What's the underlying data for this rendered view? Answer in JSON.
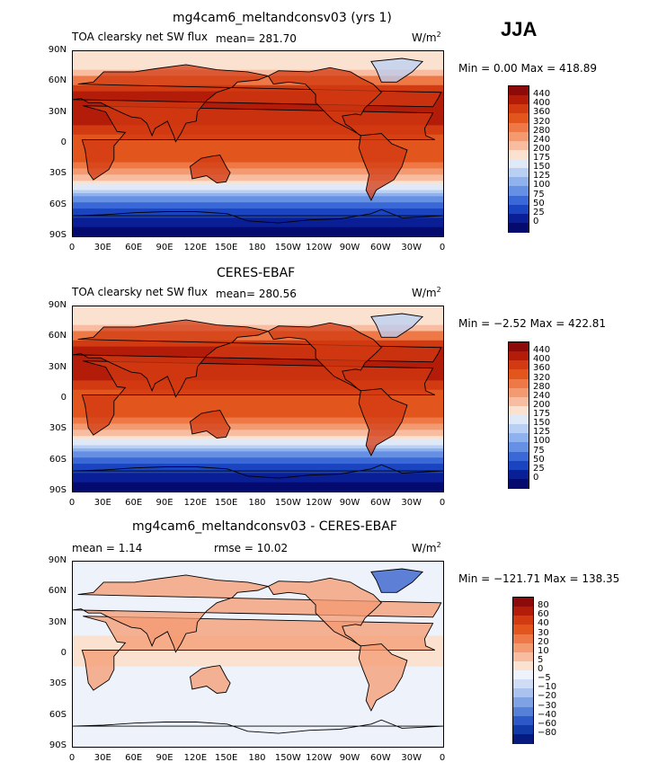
{
  "season": "JJA",
  "units": "W/m",
  "units_sup": "2",
  "panels": [
    {
      "title": "mg4cam6_meltandconsv03 (yrs 1)",
      "variable": "TOA clearsky net SW flux",
      "stat_text": "mean= 281.70",
      "minmax": "Min =    0.00 Max = 418.89",
      "colorbar": [
        "440",
        "400",
        "360",
        "320",
        "280",
        "240",
        "200",
        "175",
        "150",
        "125",
        "100",
        "75",
        "50",
        "25",
        "0"
      ]
    },
    {
      "title": "CERES-EBAF",
      "variable": "TOA clearsky net SW flux",
      "stat_text": "mean= 280.56",
      "minmax": "Min =  −2.52 Max = 422.81",
      "colorbar": [
        "440",
        "400",
        "360",
        "320",
        "280",
        "240",
        "200",
        "175",
        "150",
        "125",
        "100",
        "75",
        "50",
        "25",
        "0"
      ]
    },
    {
      "title": "mg4cam6_meltandconsv03 - CERES-EBAF",
      "mean_text": "mean =    1.14",
      "rmse_text": "rmse =   10.02",
      "minmax": "Min = −121.71 Max = 138.35",
      "colorbar": [
        "80",
        "60",
        "40",
        "30",
        "20",
        "10",
        "5",
        "0",
        "−5",
        "−10",
        "−20",
        "−30",
        "−40",
        "−60",
        "−80"
      ]
    }
  ],
  "lat_ticks": [
    "90N",
    "60N",
    "30N",
    "0",
    "30S",
    "60S",
    "90S"
  ],
  "lon_ticks": [
    "0",
    "30E",
    "60E",
    "90E",
    "120E",
    "150E",
    "180",
    "150W",
    "120W",
    "90W",
    "60W",
    "30W",
    "0"
  ],
  "colors": {
    "abs_scale": [
      "#8c0a0a",
      "#b41c0a",
      "#d23a12",
      "#e2561e",
      "#ee7846",
      "#f49a70",
      "#f8bda0",
      "#fbe2d0",
      "#dfe9f8",
      "#b9cff4",
      "#8fb1ee",
      "#6690e4",
      "#3a68d6",
      "#1a44c0",
      "#0a1e96",
      "#050a6e"
    ],
    "diff_scale": [
      "#8c0a0a",
      "#b41c0a",
      "#d23a12",
      "#e2561e",
      "#ee7846",
      "#f49a70",
      "#f8bda0",
      "#fbe2d0",
      "#eef3fb",
      "#cfdcf4",
      "#aac3ee",
      "#7fa2e4",
      "#5480d8",
      "#2c58c8",
      "#123aa6",
      "#061a80"
    ]
  }
}
